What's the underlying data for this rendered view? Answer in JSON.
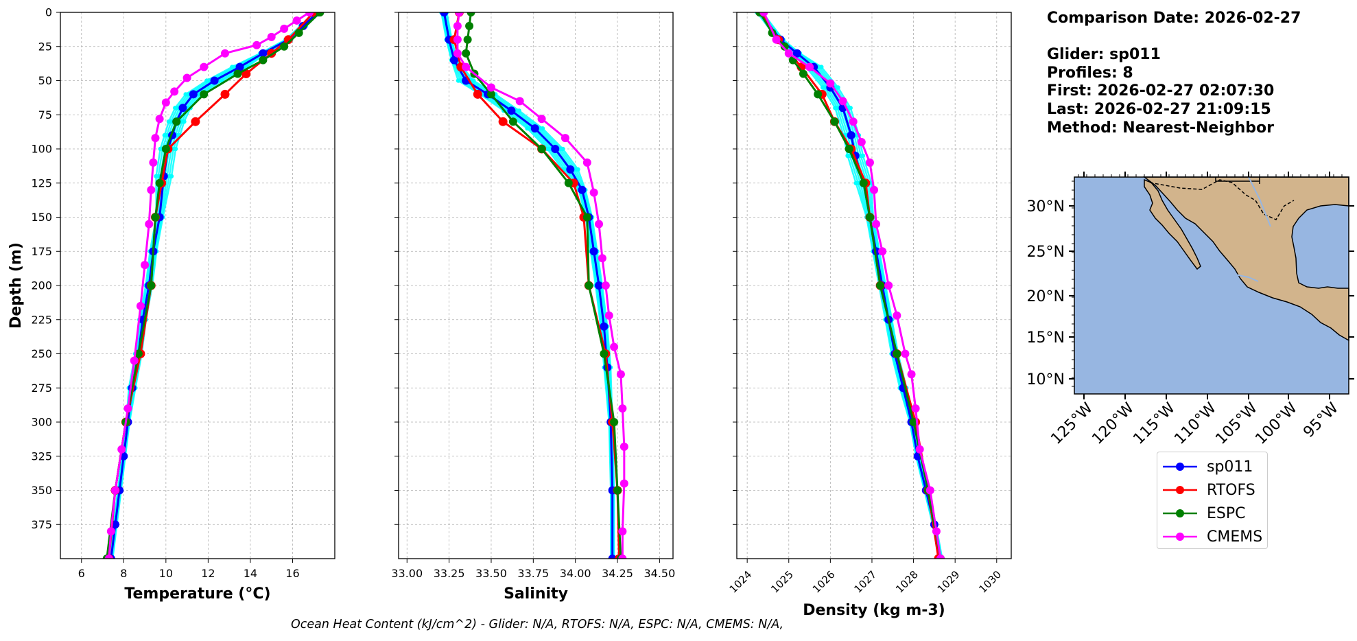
{
  "chart_data": [
    {
      "type": "line",
      "xlabel": "Temperature (°C)",
      "ylabel": "Depth (m)",
      "xlim": [
        5,
        18
      ],
      "ylim": [
        400,
        0
      ],
      "xticks": [
        "6",
        "8",
        "10",
        "12",
        "14",
        "16"
      ],
      "yticks": [
        "0",
        "25",
        "50",
        "75",
        "100",
        "125",
        "150",
        "175",
        "200",
        "225",
        "250",
        "275",
        "300",
        "325",
        "350",
        "375"
      ],
      "grid": true,
      "series": [
        {
          "name": "sp011",
          "color": "#0000ff",
          "points": [
            [
              17.2,
              0
            ],
            [
              16.5,
              10
            ],
            [
              15.8,
              20
            ],
            [
              14.6,
              30
            ],
            [
              13.5,
              40
            ],
            [
              12.3,
              50
            ],
            [
              11.3,
              60
            ],
            [
              10.8,
              70
            ],
            [
              10.5,
              80
            ],
            [
              10.3,
              90
            ],
            [
              10.1,
              100
            ],
            [
              9.9,
              120
            ],
            [
              9.7,
              150
            ],
            [
              9.4,
              175
            ],
            [
              9.2,
              200
            ],
            [
              8.9,
              225
            ],
            [
              8.7,
              250
            ],
            [
              8.4,
              275
            ],
            [
              8.2,
              300
            ],
            [
              8.0,
              325
            ],
            [
              7.8,
              350
            ],
            [
              7.6,
              375
            ],
            [
              7.4,
              400
            ]
          ]
        },
        {
          "name": "RTOFS",
          "color": "#ff0000",
          "points": [
            [
              17.0,
              0
            ],
            [
              15.8,
              20
            ],
            [
              15.0,
              30
            ],
            [
              13.8,
              45
            ],
            [
              12.8,
              60
            ],
            [
              11.4,
              80
            ],
            [
              10.1,
              100
            ],
            [
              9.8,
              125
            ],
            [
              9.5,
              150
            ],
            [
              9.3,
              200
            ],
            [
              8.8,
              250
            ],
            [
              8.1,
              300
            ],
            [
              7.6,
              350
            ],
            [
              7.3,
              400
            ]
          ]
        },
        {
          "name": "ESPC",
          "color": "#008000",
          "points": [
            [
              17.3,
              0
            ],
            [
              16.3,
              15
            ],
            [
              15.6,
              25
            ],
            [
              14.6,
              35
            ],
            [
              13.4,
              45
            ],
            [
              11.8,
              60
            ],
            [
              10.5,
              80
            ],
            [
              10.0,
              100
            ],
            [
              9.7,
              125
            ],
            [
              9.5,
              150
            ],
            [
              9.3,
              200
            ],
            [
              8.7,
              250
            ],
            [
              8.1,
              300
            ],
            [
              7.6,
              350
            ],
            [
              7.2,
              400
            ]
          ]
        },
        {
          "name": "CMEMS",
          "color": "#ff00ff",
          "points": [
            [
              16.8,
              0
            ],
            [
              16.2,
              6
            ],
            [
              15.6,
              12
            ],
            [
              15.0,
              18
            ],
            [
              14.3,
              24
            ],
            [
              12.8,
              30
            ],
            [
              11.8,
              40
            ],
            [
              11.0,
              48
            ],
            [
              10.4,
              58
            ],
            [
              10.0,
              66
            ],
            [
              9.7,
              78
            ],
            [
              9.5,
              92
            ],
            [
              9.4,
              110
            ],
            [
              9.3,
              130
            ],
            [
              9.2,
              155
            ],
            [
              9.0,
              185
            ],
            [
              8.8,
              215
            ],
            [
              8.5,
              255
            ],
            [
              8.2,
              290
            ],
            [
              7.9,
              320
            ],
            [
              7.6,
              350
            ],
            [
              7.4,
              380
            ],
            [
              7.3,
              400
            ]
          ]
        }
      ]
    },
    {
      "type": "line",
      "xlabel": "Salinity",
      "ylabel": "",
      "xlim": [
        32.95,
        34.58
      ],
      "ylim": [
        400,
        0
      ],
      "xticks": [
        "33.00",
        "33.25",
        "33.50",
        "33.75",
        "34.00",
        "34.25",
        "34.50"
      ],
      "grid": true,
      "series": [
        {
          "name": "sp011",
          "color": "#0000ff",
          "points": [
            [
              33.22,
              0
            ],
            [
              33.25,
              20
            ],
            [
              33.28,
              35
            ],
            [
              33.35,
              50
            ],
            [
              33.48,
              60
            ],
            [
              33.62,
              72
            ],
            [
              33.76,
              85
            ],
            [
              33.88,
              100
            ],
            [
              33.97,
              115
            ],
            [
              34.04,
              130
            ],
            [
              34.08,
              150
            ],
            [
              34.11,
              175
            ],
            [
              34.14,
              200
            ],
            [
              34.17,
              230
            ],
            [
              34.19,
              260
            ],
            [
              34.21,
              300
            ],
            [
              34.22,
              350
            ],
            [
              34.22,
              400
            ]
          ]
        },
        {
          "name": "RTOFS",
          "color": "#ff0000",
          "points": [
            [
              33.31,
              0
            ],
            [
              33.28,
              20
            ],
            [
              33.32,
              40
            ],
            [
              33.42,
              60
            ],
            [
              33.57,
              80
            ],
            [
              33.8,
              100
            ],
            [
              33.99,
              125
            ],
            [
              34.05,
              150
            ],
            [
              34.08,
              200
            ],
            [
              34.18,
              250
            ],
            [
              34.22,
              300
            ],
            [
              34.25,
              350
            ],
            [
              34.26,
              400
            ]
          ]
        },
        {
          "name": "ESPC",
          "color": "#008000",
          "points": [
            [
              33.38,
              0
            ],
            [
              33.37,
              10
            ],
            [
              33.36,
              20
            ],
            [
              33.35,
              30
            ],
            [
              33.4,
              45
            ],
            [
              33.5,
              60
            ],
            [
              33.63,
              80
            ],
            [
              33.8,
              100
            ],
            [
              33.96,
              125
            ],
            [
              34.07,
              150
            ],
            [
              34.08,
              200
            ],
            [
              34.17,
              250
            ],
            [
              34.23,
              300
            ],
            [
              34.25,
              350
            ],
            [
              34.27,
              400
            ]
          ]
        },
        {
          "name": "CMEMS",
          "color": "#ff00ff",
          "points": [
            [
              33.31,
              0
            ],
            [
              33.3,
              10
            ],
            [
              33.3,
              20
            ],
            [
              33.3,
              30
            ],
            [
              33.35,
              40
            ],
            [
              33.5,
              55
            ],
            [
              33.67,
              65
            ],
            [
              33.8,
              78
            ],
            [
              33.94,
              92
            ],
            [
              34.07,
              110
            ],
            [
              34.11,
              132
            ],
            [
              34.14,
              155
            ],
            [
              34.16,
              180
            ],
            [
              34.18,
              200
            ],
            [
              34.2,
              222
            ],
            [
              34.23,
              245
            ],
            [
              34.27,
              265
            ],
            [
              34.28,
              290
            ],
            [
              34.29,
              318
            ],
            [
              34.29,
              345
            ],
            [
              34.28,
              380
            ],
            [
              34.28,
              400
            ]
          ]
        }
      ]
    },
    {
      "type": "line",
      "xlabel": "Density (kg m-3)",
      "ylabel": "",
      "xlim": [
        1023.75,
        1030.35
      ],
      "ylim": [
        400,
        0
      ],
      "xticks": [
        "1024",
        "1025",
        "1026",
        "1027",
        "1028",
        "1029",
        "1030"
      ],
      "grid": true,
      "series": [
        {
          "name": "sp011",
          "color": "#0000ff",
          "points": [
            [
              1024.3,
              0
            ],
            [
              1024.8,
              20
            ],
            [
              1025.2,
              30
            ],
            [
              1025.6,
              40
            ],
            [
              1026.0,
              55
            ],
            [
              1026.3,
              70
            ],
            [
              1026.5,
              90
            ],
            [
              1026.6,
              105
            ],
            [
              1026.8,
              125
            ],
            [
              1026.95,
              150
            ],
            [
              1027.1,
              175
            ],
            [
              1027.25,
              200
            ],
            [
              1027.4,
              225
            ],
            [
              1027.55,
              250
            ],
            [
              1027.75,
              275
            ],
            [
              1027.95,
              300
            ],
            [
              1028.1,
              325
            ],
            [
              1028.3,
              350
            ],
            [
              1028.5,
              375
            ],
            [
              1028.65,
              400
            ]
          ]
        },
        {
          "name": "RTOFS",
          "color": "#ff0000",
          "points": [
            [
              1024.35,
              0
            ],
            [
              1024.75,
              20
            ],
            [
              1025.3,
              40
            ],
            [
              1025.8,
              60
            ],
            [
              1026.1,
              80
            ],
            [
              1026.5,
              100
            ],
            [
              1026.85,
              125
            ],
            [
              1026.95,
              150
            ],
            [
              1027.2,
              200
            ],
            [
              1027.6,
              250
            ],
            [
              1028.05,
              300
            ],
            [
              1028.35,
              350
            ],
            [
              1028.6,
              400
            ]
          ]
        },
        {
          "name": "ESPC",
          "color": "#008000",
          "points": [
            [
              1024.3,
              0
            ],
            [
              1024.6,
              15
            ],
            [
              1024.9,
              25
            ],
            [
              1025.1,
              35
            ],
            [
              1025.35,
              45
            ],
            [
              1025.7,
              60
            ],
            [
              1026.1,
              80
            ],
            [
              1026.45,
              100
            ],
            [
              1026.8,
              125
            ],
            [
              1026.95,
              150
            ],
            [
              1027.2,
              200
            ],
            [
              1027.6,
              250
            ],
            [
              1028.0,
              300
            ],
            [
              1028.35,
              350
            ],
            [
              1028.65,
              400
            ]
          ]
        },
        {
          "name": "CMEMS",
          "color": "#ff00ff",
          "points": [
            [
              1024.4,
              0
            ],
            [
              1024.7,
              20
            ],
            [
              1025.0,
              30
            ],
            [
              1025.5,
              40
            ],
            [
              1026.0,
              52
            ],
            [
              1026.3,
              65
            ],
            [
              1026.55,
              80
            ],
            [
              1026.75,
              95
            ],
            [
              1026.95,
              110
            ],
            [
              1027.05,
              130
            ],
            [
              1027.1,
              155
            ],
            [
              1027.25,
              175
            ],
            [
              1027.4,
              200
            ],
            [
              1027.6,
              222
            ],
            [
              1027.8,
              250
            ],
            [
              1027.95,
              265
            ],
            [
              1028.05,
              290
            ],
            [
              1028.15,
              320
            ],
            [
              1028.4,
              350
            ],
            [
              1028.55,
              380
            ],
            [
              1028.65,
              400
            ]
          ]
        }
      ]
    }
  ],
  "info": {
    "comparison_date": "Comparison Date: 2026-02-27",
    "glider": "Glider: sp011",
    "profiles": "Profiles: 8",
    "first": "First: 2026-02-27 02:07:30",
    "last": "Last: 2026-02-27 21:09:15",
    "method": "Method: Nearest-Neighbor"
  },
  "map": {
    "ocean_color": "#97b6e1",
    "land_color": "#d2b48c",
    "lat_labels": [
      "30°N",
      "25°N",
      "20°N",
      "15°N",
      "10°N"
    ],
    "lon_labels": [
      "125°W",
      "120°W",
      "115°W",
      "110°W",
      "105°W",
      "100°W",
      "95°W"
    ]
  },
  "legend": {
    "items": [
      {
        "label": "sp011",
        "color": "#0000ff"
      },
      {
        "label": "RTOFS",
        "color": "#ff0000"
      },
      {
        "label": "ESPC",
        "color": "#008000"
      },
      {
        "label": "CMEMS",
        "color": "#ff00ff"
      }
    ]
  },
  "footer": "Ocean Heat Content (kJ/cm^2) - Glider: N/A,  RTOFS: N/A,  ESPC: N/A,  CMEMS: N/A,",
  "colors": {
    "glider_profiles": "#00ffff"
  }
}
